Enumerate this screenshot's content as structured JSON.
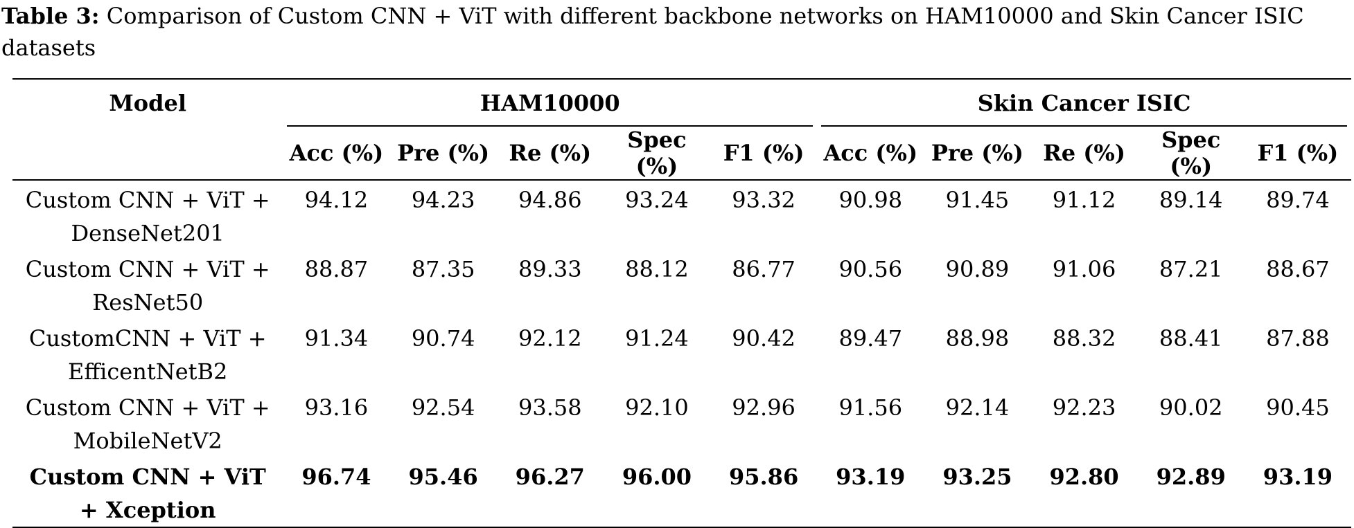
{
  "caption": {
    "label": "Table 3:",
    "text": "Comparison of Custom CNN + ViT with different backbone networks on HAM10000 and Skin Cancer ISIC datasets"
  },
  "table": {
    "model_header": "Model",
    "groups": [
      "HAM10000",
      "Skin Cancer ISIC"
    ],
    "metrics": [
      "Acc (%)",
      "Pre (%)",
      "Re (%)",
      "Spec (%)",
      "F1 (%)",
      "Acc (%)",
      "Pre (%)",
      "Re (%)",
      "Spec (%)",
      "F1 (%)"
    ],
    "rows": [
      {
        "model_line1": "Custom CNN + ViT +",
        "model_line2": "DenseNet201",
        "values": [
          "94.12",
          "94.23",
          "94.86",
          "93.24",
          "93.32",
          "90.98",
          "91.45",
          "91.12",
          "89.14",
          "89.74"
        ]
      },
      {
        "model_line1": "Custom CNN + ViT +",
        "model_line2": "ResNet50",
        "values": [
          "88.87",
          "87.35",
          "89.33",
          "88.12",
          "86.77",
          "90.56",
          "90.89",
          "91.06",
          "87.21",
          "88.67"
        ]
      },
      {
        "model_line1": "CustomCNN + ViT +",
        "model_line2": "EfficentNetB2",
        "values": [
          "91.34",
          "90.74",
          "92.12",
          "91.24",
          "90.42",
          "89.47",
          "88.98",
          "88.32",
          "88.41",
          "87.88"
        ]
      },
      {
        "model_line1": "Custom CNN + ViT +",
        "model_line2": "MobileNetV2",
        "values": [
          "93.16",
          "92.54",
          "93.58",
          "92.10",
          "92.96",
          "91.56",
          "92.14",
          "92.23",
          "90.02",
          "90.45"
        ]
      },
      {
        "model_line1": "Custom CNN + ViT",
        "model_line2": "+ Xception",
        "values": [
          "96.74",
          "95.46",
          "96.27",
          "96.00",
          "95.86",
          "93.19",
          "93.25",
          "92.80",
          "92.89",
          "93.19"
        ],
        "bold": true
      }
    ]
  }
}
